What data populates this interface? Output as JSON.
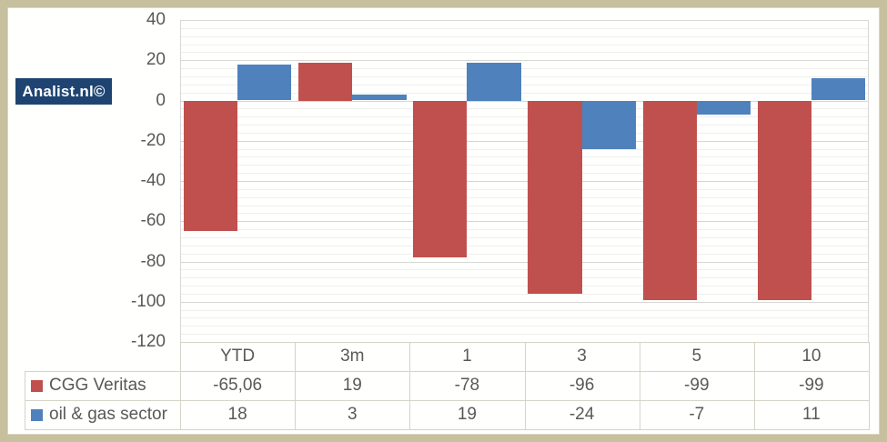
{
  "branding": {
    "badge_text": "Analist.nl©"
  },
  "colors": {
    "badge_bg": "#1f4472",
    "frame_border": "#c6c09e",
    "series_red": "#c0504d",
    "series_blue": "#4f81bd",
    "grid_major": "#d7d7d5",
    "grid_minor": "#efefed",
    "table_border": "#d6d3c8",
    "text": "#595959"
  },
  "chart_data": {
    "type": "bar",
    "title": "",
    "xlabel": "",
    "ylabel": "",
    "categories": [
      "YTD",
      "3m",
      "1",
      "3",
      "5",
      "10"
    ],
    "series": [
      {
        "name": "CGG Veritas",
        "color": "#c0504d",
        "values": [
          -65.06,
          19,
          -78,
          -96,
          -99,
          -99
        ],
        "display": [
          "-65,06",
          "19",
          "-78",
          "-96",
          "-99",
          "-99"
        ]
      },
      {
        "name": "oil & gas sector",
        "color": "#4f81bd",
        "values": [
          18,
          3,
          19,
          -24,
          -7,
          11
        ],
        "display": [
          "18",
          "3",
          "19",
          "-24",
          "-7",
          "11"
        ]
      }
    ],
    "ylim": [
      -120,
      40
    ],
    "y_major_step": 20,
    "y_minor_step": 4,
    "y_tick_labels": [
      "40",
      "20",
      "0",
      "-20",
      "-40",
      "-60",
      "-80",
      "-100",
      "-120"
    ],
    "grid": true,
    "legend_position": "data-table-left"
  }
}
